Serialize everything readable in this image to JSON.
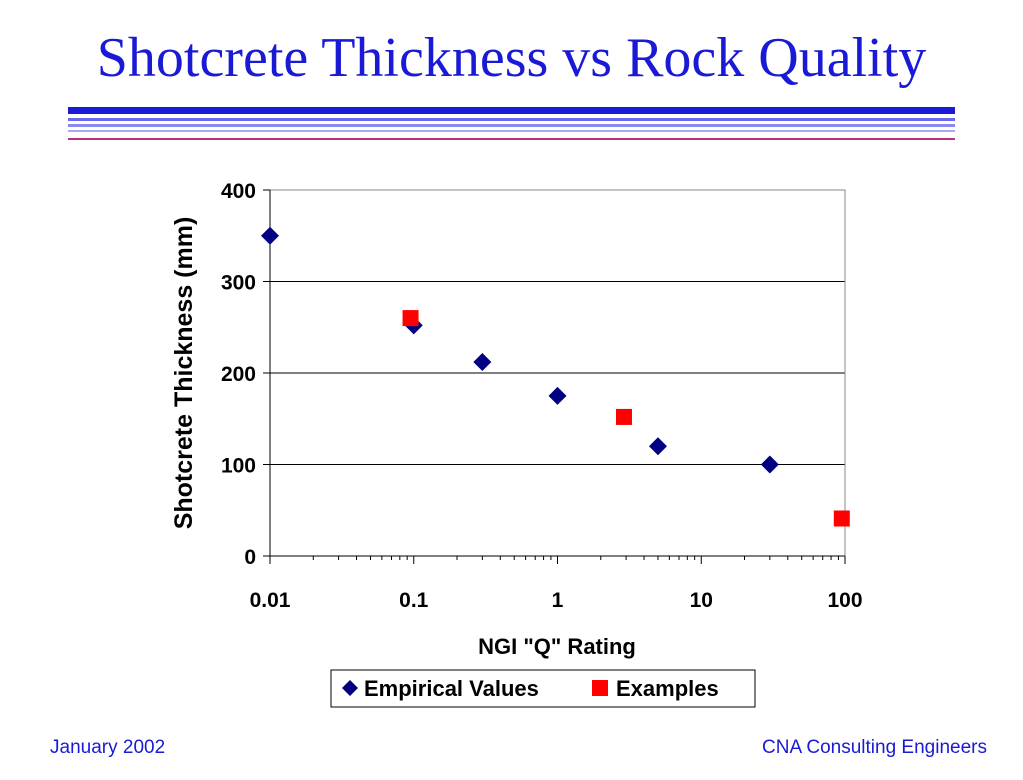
{
  "slide": {
    "title": "Shotcrete Thickness vs Rock Quality",
    "footer_left": "January 2002",
    "footer_right": "CNA Consulting Engineers"
  },
  "colors": {
    "title": "#1a1ad6",
    "empirical": "#000080",
    "examples": "#ff0000",
    "rule_dark": "#1a1ad6",
    "rule_mid": "#6a6ae8",
    "rule_light": "#a9a9f2",
    "rule_accent": "#c0307a"
  },
  "chart_data": {
    "type": "scatter",
    "xlabel": "NGI \"Q\" Rating",
    "ylabel": "Shotcrete Thickness (mm)",
    "xscale": "log",
    "xlim": [
      0.01,
      100
    ],
    "ylim": [
      0,
      400
    ],
    "xticks": [
      "0.01",
      "0.1",
      "1",
      "10",
      "100"
    ],
    "yticks": [
      "0",
      "100",
      "200",
      "300",
      "400"
    ],
    "grid": "horizontal",
    "legend_position": "bottom",
    "series": [
      {
        "name": "Empirical Values",
        "marker": "diamond",
        "points": [
          {
            "x": 0.01,
            "y": 350
          },
          {
            "x": 0.1,
            "y": 252
          },
          {
            "x": 0.3,
            "y": 212
          },
          {
            "x": 1,
            "y": 175
          },
          {
            "x": 5,
            "y": 120
          },
          {
            "x": 30,
            "y": 100
          }
        ]
      },
      {
        "name": "Examples",
        "marker": "square",
        "points": [
          {
            "x": 0.095,
            "y": 260
          },
          {
            "x": 2.9,
            "y": 152
          },
          {
            "x": 95,
            "y": 41
          }
        ]
      }
    ]
  }
}
